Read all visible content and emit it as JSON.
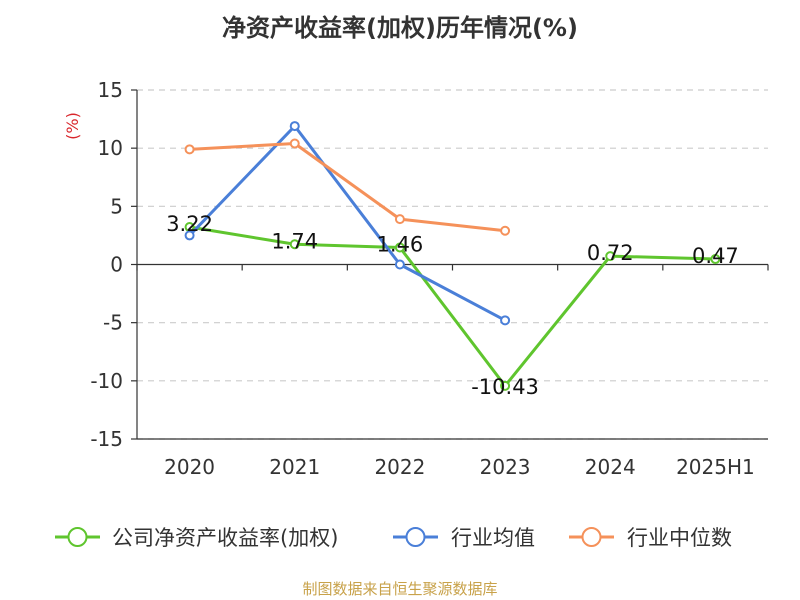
{
  "chart_data": {
    "type": "line",
    "title": "净资产收益率(加权)历年情况(%)",
    "ylabel": "(%)",
    "xlabel": "",
    "categories": [
      "2020",
      "2021",
      "2022",
      "2023",
      "2024",
      "2025H1"
    ],
    "ylim": [
      -15,
      15
    ],
    "yticks": [
      15,
      10,
      5,
      0,
      -5,
      -10,
      -15
    ],
    "grid": true,
    "legend_position": "bottom",
    "series": [
      {
        "name": "公司净资产收益率(加权)",
        "color": "#5fc52e",
        "values": [
          3.22,
          1.74,
          1.46,
          -10.43,
          0.72,
          0.47
        ],
        "labels": [
          "3.22",
          "1.74",
          "1.46",
          "-10.43",
          "0.72",
          "0.47"
        ]
      },
      {
        "name": "行业均值",
        "color": "#4a7fd8",
        "values": [
          2.5,
          11.9,
          0.0,
          -4.8,
          null,
          null
        ]
      },
      {
        "name": "行业中位数",
        "color": "#f5915a",
        "values": [
          9.9,
          10.4,
          3.9,
          2.9,
          null,
          null
        ]
      }
    ],
    "ylabel_color": "#d9262c"
  },
  "source": "制图数据来自恒生聚源数据库"
}
